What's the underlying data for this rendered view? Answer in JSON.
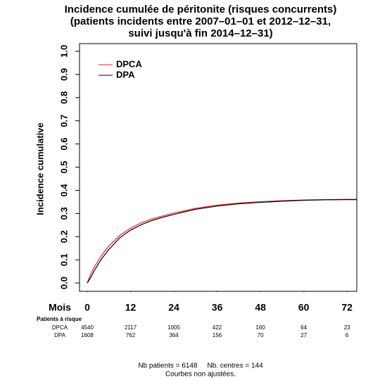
{
  "chart_data": {
    "type": "line",
    "title": [
      "Incidence cumulée de péritonite (risques concurrents)",
      "(patients incidents entre 2007–01–01 et 2012–12–31,",
      "suivi jusqu'à fin 2014–12–31)"
    ],
    "ylabel": "Incidence cumulative",
    "xlabel": "Mois",
    "x": [
      0,
      1,
      2,
      3,
      4,
      6,
      9,
      12,
      15,
      18,
      21,
      24,
      30,
      36,
      42,
      48,
      54,
      60,
      66,
      72,
      74.7
    ],
    "series": [
      {
        "name": "DPCA",
        "color": "#e8262a",
        "values": [
          0,
          0.04,
          0.07,
          0.095,
          0.12,
          0.16,
          0.205,
          0.237,
          0.26,
          0.277,
          0.29,
          0.302,
          0.322,
          0.336,
          0.345,
          0.351,
          0.355,
          0.358,
          0.36,
          0.361,
          0.361
        ]
      },
      {
        "name": "DPA",
        "color": "#000000",
        "values": [
          0,
          0.025,
          0.055,
          0.08,
          0.105,
          0.145,
          0.195,
          0.228,
          0.252,
          0.27,
          0.284,
          0.296,
          0.318,
          0.332,
          0.342,
          0.348,
          0.353,
          0.357,
          0.359,
          0.36,
          0.36
        ]
      }
    ],
    "xlim": [
      -2.15,
      74.7
    ],
    "ylim": [
      -0.036,
      1.033
    ],
    "xticks": [
      0,
      12,
      24,
      36,
      48,
      60,
      72
    ],
    "yticks": [
      {
        "value": 0,
        "label": "0.0"
      },
      0.1,
      0.2,
      0.3,
      0.4,
      0.5,
      0.6,
      0.7,
      0.8,
      0.9,
      {
        "value": 1,
        "label": "1.0"
      }
    ],
    "risk_table": {
      "title": "Patients à risque",
      "rows": [
        {
          "name": "DPCA",
          "values": [
            "4540",
            "2117",
            "1005",
            "422",
            "160",
            "64",
            "23"
          ]
        },
        {
          "name": "DPA",
          "values": [
            "1608",
            "762",
            "364",
            "156",
            "70",
            "27",
            "6"
          ]
        }
      ]
    },
    "footer": [
      "Nb patients = 6148     Nb. centres = 144",
      "Courbes non ajustées."
    ]
  }
}
